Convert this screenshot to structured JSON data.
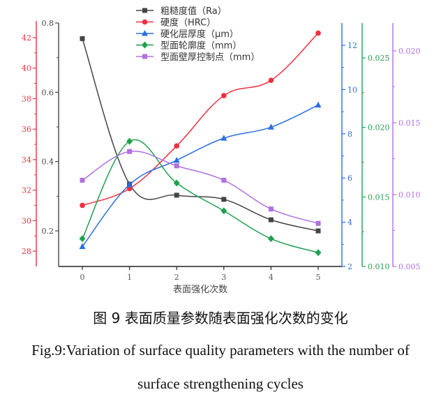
{
  "chart_data": {
    "type": "line",
    "title": "",
    "xlabel": "表面强化次数",
    "categories": [
      0,
      1,
      2,
      3,
      4,
      5
    ],
    "x": [
      0,
      1,
      2,
      3,
      4,
      5
    ],
    "legend_position": "top-center inside plot",
    "grid": false,
    "series": [
      {
        "name": "粗糙度值（Ra）",
        "color": "#444444",
        "marker": "square",
        "axis": "left-inner",
        "values": [
          0.755,
          0.335,
          0.303,
          0.291,
          0.232,
          0.2
        ]
      },
      {
        "name": "硬度（HRC）",
        "color": "#f03040",
        "marker": "circle",
        "axis": "left-outer",
        "values": [
          31.0,
          32.1,
          34.9,
          38.2,
          39.2,
          42.3
        ]
      },
      {
        "name": "硬化层厚度（μm）",
        "color": "#2a6fe0",
        "marker": "triangle",
        "axis": "right-1",
        "values": [
          2.9,
          5.7,
          6.8,
          7.8,
          8.3,
          9.3
        ]
      },
      {
        "name": "型面轮廓度（mm）",
        "color": "#20a050",
        "marker": "diamond",
        "axis": "right-2",
        "values": [
          0.012,
          0.019,
          0.016,
          0.014,
          0.012,
          0.011
        ]
      },
      {
        "name": "型面壁厚控制点（mm）",
        "color": "#b070e0",
        "marker": "square",
        "axis": "right-3",
        "values": [
          0.011,
          0.013,
          0.012,
          0.011,
          0.009,
          0.008
        ]
      }
    ],
    "axes": {
      "left-inner": {
        "color": "#444444",
        "ticks": [
          "0.2",
          "0.4",
          "0.6",
          "0.8"
        ],
        "range": [
          0.1,
          0.8
        ]
      },
      "left-outer": {
        "color": "#f03040",
        "ticks": [
          "28",
          "30",
          "32",
          "34",
          "36",
          "38",
          "40",
          "42"
        ],
        "range": [
          27,
          43
        ]
      },
      "right-1": {
        "color": "#2a6fe0",
        "ticks": [
          "2",
          "4",
          "6",
          "8",
          "10",
          "12"
        ],
        "range": [
          2,
          13
        ]
      },
      "right-2": {
        "color": "#20a050",
        "ticks": [
          "0.010",
          "0.015",
          "0.020",
          "0.025"
        ],
        "range": [
          0.01,
          0.0265
        ]
      },
      "right-3": {
        "color": "#b070e0",
        "ticks": [
          "0.005",
          "0.010",
          "0.015",
          "0.020"
        ],
        "range": [
          0.005,
          0.0215
        ]
      }
    }
  },
  "captions": {
    "cn": "图 9  表面质量参数随表面强化次数的变化",
    "en_line1": "Fig.9:Variation of surface quality parameters with the number of",
    "en_line2": "surface strengthening cycles"
  }
}
